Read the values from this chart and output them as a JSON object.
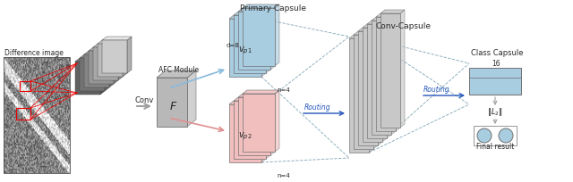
{
  "background_color": "#ffffff",
  "diff_image_label": "Difference image",
  "afc_label": "AFC Module",
  "conv_label": "Conv",
  "primary_capsule_label": "Primary Capsule",
  "conv_capsule_label": "Conv-Capsule",
  "class_capsule_label": "Class Capsule",
  "routing_label1": "Routing",
  "routing_label2": "Routing",
  "final_result_label": "Final result",
  "d8_label": "d=8",
  "n4_label1": "n=4",
  "n4_label2": "n=4",
  "F_label": "F",
  "vp1_label": "v_{p1}",
  "vp2_label": "v_{p2}",
  "norm_label": "||L_2||",
  "num_16_label": "16",
  "layer_color_blue": "#a8cce0",
  "layer_color_pink": "#f2bfbf",
  "layer_color_gray": "#c8c8c8",
  "layer_color_afc": "#b8b8b8",
  "layer_color_class": "#a8cce0",
  "arrow_color_gray": "#a0a0a0",
  "arrow_color_blue_routing": "#2255bb",
  "arrow_color_blue_afc": "#88bbdd",
  "arrow_color_pink_afc": "#e09090",
  "dashed_line_color": "#8aabbb",
  "red_box_color": "#ee0000",
  "text_color": "#282828",
  "edge_color": "#707070"
}
